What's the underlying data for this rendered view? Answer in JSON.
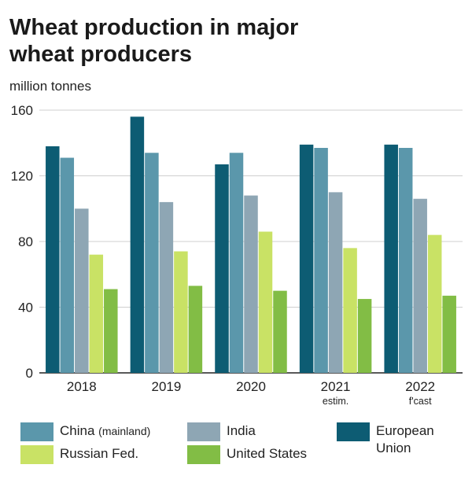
{
  "title_lines": [
    "Wheat production in major",
    "wheat producers"
  ],
  "unit_label": "million tonnes",
  "chart_data": {
    "type": "bar",
    "title": "Wheat production in major wheat producers",
    "ylabel": "million tonnes",
    "xlabel": "",
    "ylim": [
      0,
      160
    ],
    "yticks": [
      0,
      40,
      80,
      120,
      160
    ],
    "grid": true,
    "categories": [
      "2018",
      "2019",
      "2020",
      "2021",
      "2022"
    ],
    "category_sublabels": [
      "",
      "",
      "",
      "estim.",
      "f'cast"
    ],
    "series": [
      {
        "name": "European Union",
        "color": "#0d5c73",
        "values": [
          138,
          156,
          127,
          139,
          139
        ]
      },
      {
        "name": "China (mainland)",
        "color": "#5b97ab",
        "values": [
          131,
          134,
          134,
          137,
          137
        ]
      },
      {
        "name": "India",
        "color": "#8ea6b4",
        "values": [
          100,
          104,
          108,
          110,
          106
        ]
      },
      {
        "name": "Russian Fed.",
        "color": "#c9e265",
        "values": [
          72,
          74,
          86,
          76,
          84
        ]
      },
      {
        "name": "United States",
        "color": "#82bd45",
        "values": [
          51,
          53,
          50,
          45,
          47
        ]
      }
    ]
  },
  "legend": [
    {
      "main": "China",
      "sub": "(mainland)",
      "series_index": 1
    },
    {
      "main": "India",
      "sub": "",
      "series_index": 2
    },
    {
      "main": "European Union",
      "sub": "",
      "series_index": 0
    },
    {
      "main": "Russian Fed.",
      "sub": "",
      "series_index": 3
    },
    {
      "main": "United States",
      "sub": "",
      "series_index": 4
    }
  ]
}
